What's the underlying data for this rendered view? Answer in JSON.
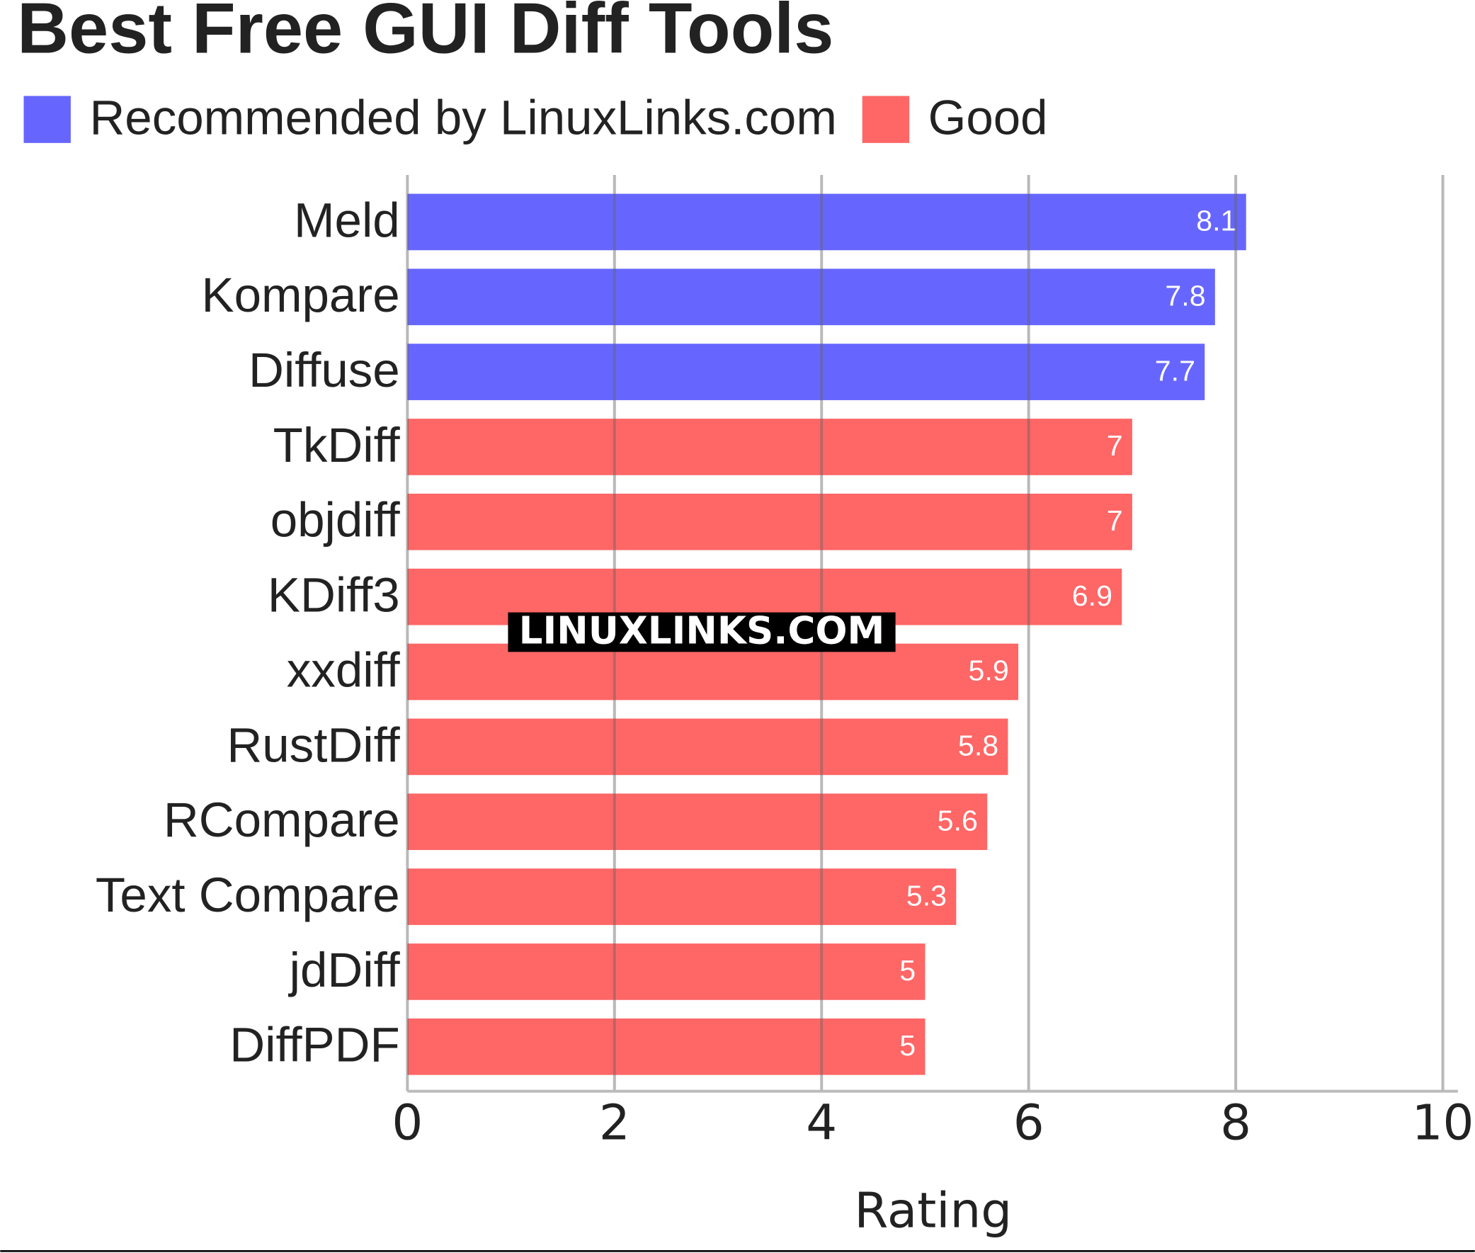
{
  "chart_data": {
    "type": "bar",
    "orientation": "horizontal",
    "title": "Best Free GUI Diff Tools",
    "categories": [
      "Meld",
      "Kompare",
      "Diffuse",
      "TkDiff",
      "objdiff",
      "KDiff3",
      "xxdiff",
      "RustDiff",
      "RCompare",
      "Text Compare",
      "jdDiff",
      "DiffPDF"
    ],
    "series": [
      {
        "name": "Recommended by LinuxLinks.com",
        "color": "#6666ff",
        "values": [
          8.1,
          7.8,
          7.7,
          null,
          null,
          null,
          null,
          null,
          null,
          null,
          null,
          null
        ]
      },
      {
        "name": "Good",
        "color": "#ff6666",
        "values": [
          null,
          null,
          null,
          7,
          7,
          6.9,
          5.9,
          5.8,
          5.6,
          5.3,
          5,
          5
        ]
      }
    ],
    "xlim": [
      0,
      10
    ],
    "xticks": [
      0,
      2,
      4,
      6,
      8,
      10
    ],
    "xlabel": "Rating",
    "grid": true,
    "legend": "top-left",
    "annotation": "LINUXLINKS.COM"
  }
}
